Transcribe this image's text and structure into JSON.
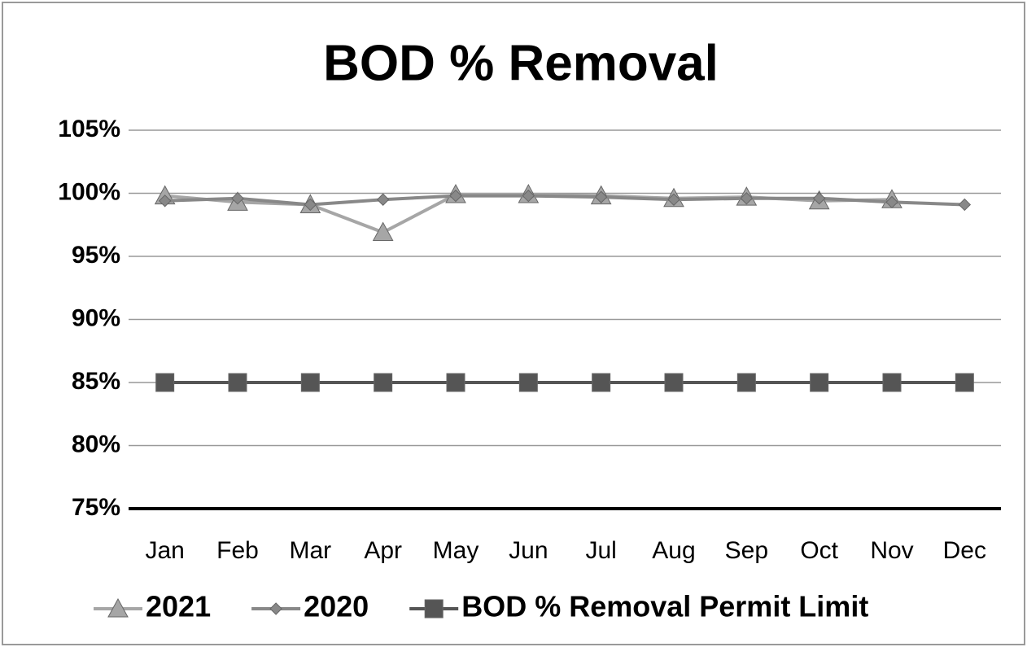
{
  "chart_data": {
    "type": "line",
    "title": "BOD % Removal",
    "categories": [
      "Jan",
      "Feb",
      "Mar",
      "Apr",
      "May",
      "Jun",
      "Jul",
      "Aug",
      "Sep",
      "Oct",
      "Nov",
      "Dec"
    ],
    "series": [
      {
        "name": "2021",
        "color": "#a6a6a6",
        "marker": "triangle",
        "values": [
          99.8,
          99.3,
          99.1,
          96.9,
          99.9,
          99.9,
          99.8,
          99.6,
          99.7,
          99.4,
          99.5,
          null
        ]
      },
      {
        "name": "2020",
        "color": "#888888",
        "marker": "diamond",
        "values": [
          99.4,
          99.6,
          99.1,
          99.5,
          99.8,
          99.8,
          99.7,
          99.5,
          99.6,
          99.6,
          99.3,
          99.1
        ]
      },
      {
        "name": "BOD % Removal Permit Limit",
        "color": "#555555",
        "marker": "square",
        "values": [
          85,
          85,
          85,
          85,
          85,
          85,
          85,
          85,
          85,
          85,
          85,
          85
        ]
      }
    ],
    "ylim": [
      75,
      105
    ],
    "yticks": [
      {
        "value": 75,
        "label": "75%"
      },
      {
        "value": 80,
        "label": "80%"
      },
      {
        "value": 85,
        "label": "85%"
      },
      {
        "value": 90,
        "label": "90%"
      },
      {
        "value": 95,
        "label": "95%"
      },
      {
        "value": 100,
        "label": "100%"
      },
      {
        "value": 105,
        "label": "105%"
      }
    ],
    "grid": true,
    "legend": "bottom"
  }
}
